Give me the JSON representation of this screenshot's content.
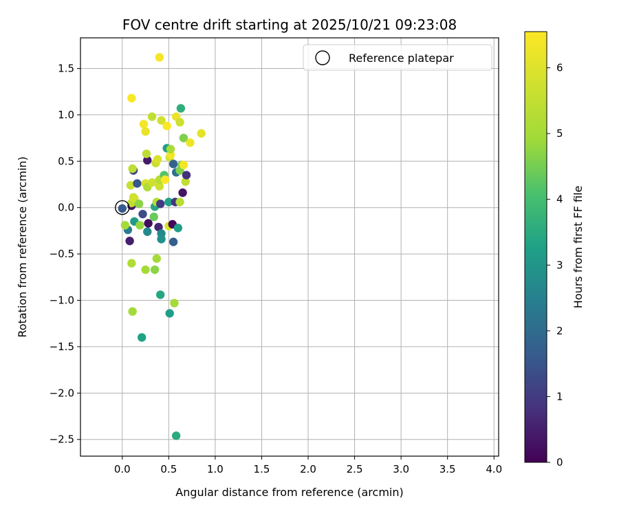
{
  "chart_data": {
    "type": "scatter",
    "title": "FOV centre drift starting at 2025/10/21 09:23:08",
    "xlabel": "Angular distance from reference (arcmin)",
    "ylabel": "Rotation from reference (arcmin)",
    "xlim": [
      -0.45,
      4.05
    ],
    "ylim": [
      -2.68,
      1.83
    ],
    "x_ticks": [
      0.0,
      0.5,
      1.0,
      1.5,
      2.0,
      2.5,
      3.0,
      3.5,
      4.0
    ],
    "x_tick_labels": [
      "0.0",
      "0.5",
      "1.0",
      "1.5",
      "2.0",
      "2.5",
      "3.0",
      "3.5",
      "4.0"
    ],
    "y_ticks": [
      1.5,
      1.0,
      0.5,
      0.0,
      -0.5,
      -1.0,
      -1.5,
      -2.0,
      -2.5
    ],
    "y_tick_labels": [
      "1.5",
      "1.0",
      "0.5",
      "0.0",
      "−0.5",
      "−1.0",
      "−1.5",
      "−2.0",
      "−2.5"
    ],
    "grid": true,
    "legend": {
      "position": "top-right",
      "entries": [
        "Reference platepar"
      ]
    },
    "reference_point": {
      "x": 0.0,
      "y": 0.0
    },
    "colorbar": {
      "label": "Hours from first FF file",
      "min": 0,
      "max": 6.55,
      "colormap": "viridis",
      "ticks": [
        0,
        1,
        2,
        3,
        4,
        5,
        6
      ],
      "tick_labels": [
        "0",
        "1",
        "2",
        "3",
        "4",
        "5",
        "6"
      ]
    },
    "points": [
      {
        "x": 0.0,
        "y": -0.01,
        "h": 1.6
      },
      {
        "x": 0.06,
        "y": -0.24,
        "h": 2.4
      },
      {
        "x": 0.08,
        "y": -0.36,
        "h": 0.5
      },
      {
        "x": 0.03,
        "y": -0.19,
        "h": 5.0
      },
      {
        "x": 0.1,
        "y": 0.02,
        "h": 0.3
      },
      {
        "x": 0.1,
        "y": 0.05,
        "h": 5.4
      },
      {
        "x": 0.09,
        "y": 0.24,
        "h": 5.6
      },
      {
        "x": 0.12,
        "y": 0.11,
        "h": 5.7
      },
      {
        "x": 0.12,
        "y": 0.4,
        "h": 1.2
      },
      {
        "x": 0.11,
        "y": 0.42,
        "h": 5.4
      },
      {
        "x": 0.13,
        "y": -0.15,
        "h": 3.1
      },
      {
        "x": 0.13,
        "y": 0.1,
        "h": 5.8
      },
      {
        "x": 0.16,
        "y": 0.26,
        "h": 1.5
      },
      {
        "x": 0.18,
        "y": 0.04,
        "h": 4.7
      },
      {
        "x": 0.19,
        "y": -0.19,
        "h": 4.8
      },
      {
        "x": 0.22,
        "y": -0.07,
        "h": 1.3
      },
      {
        "x": 0.25,
        "y": 0.26,
        "h": 5.9
      },
      {
        "x": 0.27,
        "y": 0.22,
        "h": 5.2
      },
      {
        "x": 0.27,
        "y": 0.51,
        "h": 0.4
      },
      {
        "x": 0.27,
        "y": -0.26,
        "h": 2.7
      },
      {
        "x": 0.28,
        "y": -0.17,
        "h": 0.2
      },
      {
        "x": 0.32,
        "y": 0.27,
        "h": 5.7
      },
      {
        "x": 0.34,
        "y": -0.1,
        "h": 4.4
      },
      {
        "x": 0.35,
        "y": 0.01,
        "h": 3.4
      },
      {
        "x": 0.36,
        "y": 0.48,
        "h": 5.6
      },
      {
        "x": 0.37,
        "y": 0.06,
        "h": 5.3
      },
      {
        "x": 0.38,
        "y": 0.52,
        "h": 5.9
      },
      {
        "x": 0.39,
        "y": -0.21,
        "h": 0.6
      },
      {
        "x": 0.4,
        "y": 0.23,
        "h": 5.7
      },
      {
        "x": 0.4,
        "y": 0.3,
        "h": 5.3
      },
      {
        "x": 0.41,
        "y": 0.04,
        "h": 1.0
      },
      {
        "x": 0.42,
        "y": -0.28,
        "h": 2.7
      },
      {
        "x": 0.42,
        "y": -0.34,
        "h": 2.9
      },
      {
        "x": 0.44,
        "y": 0.32,
        "h": 5.4
      },
      {
        "x": 0.45,
        "y": 0.35,
        "h": 4.2
      },
      {
        "x": 0.46,
        "y": 0.3,
        "h": 6.5
      },
      {
        "x": 0.48,
        "y": 0.64,
        "h": 3.2
      },
      {
        "x": 0.5,
        "y": 0.06,
        "h": 3.3
      },
      {
        "x": 0.5,
        "y": -0.2,
        "h": 5.9
      },
      {
        "x": 0.51,
        "y": 0.54,
        "h": 5.8
      },
      {
        "x": 0.52,
        "y": 0.57,
        "h": 6.4
      },
      {
        "x": 0.52,
        "y": 0.63,
        "h": 5.1
      },
      {
        "x": 0.54,
        "y": -0.18,
        "h": 0.1
      },
      {
        "x": 0.55,
        "y": 0.47,
        "h": 1.8
      },
      {
        "x": 0.55,
        "y": -0.37,
        "h": 1.7
      },
      {
        "x": 0.57,
        "y": 0.06,
        "h": 0.9
      },
      {
        "x": 0.58,
        "y": 0.38,
        "h": 2.1
      },
      {
        "x": 0.6,
        "y": -0.22,
        "h": 3.2
      },
      {
        "x": 0.62,
        "y": 0.06,
        "h": 5.3
      },
      {
        "x": 0.62,
        "y": 0.4,
        "h": 4.6
      },
      {
        "x": 0.64,
        "y": 0.46,
        "h": 4.5
      },
      {
        "x": 0.65,
        "y": 0.16,
        "h": 0.3
      },
      {
        "x": 0.66,
        "y": 0.75,
        "h": 4.6
      },
      {
        "x": 0.68,
        "y": 0.28,
        "h": 5.5
      },
      {
        "x": 0.69,
        "y": 0.35,
        "h": 0.8
      },
      {
        "x": 0.66,
        "y": 0.46,
        "h": 6.4
      },
      {
        "x": 0.1,
        "y": 1.18,
        "h": 6.5
      },
      {
        "x": 0.23,
        "y": 0.9,
        "h": 6.4
      },
      {
        "x": 0.25,
        "y": 0.82,
        "h": 6.2
      },
      {
        "x": 0.26,
        "y": 0.58,
        "h": 5.4
      },
      {
        "x": 0.32,
        "y": 0.98,
        "h": 5.5
      },
      {
        "x": 0.42,
        "y": 0.94,
        "h": 5.8
      },
      {
        "x": 0.48,
        "y": 0.88,
        "h": 6.5
      },
      {
        "x": 0.58,
        "y": 0.98,
        "h": 6.2
      },
      {
        "x": 0.62,
        "y": 0.92,
        "h": 5.7
      },
      {
        "x": 0.63,
        "y": 1.07,
        "h": 3.6
      },
      {
        "x": 0.73,
        "y": 0.7,
        "h": 6.3
      },
      {
        "x": 0.85,
        "y": 0.8,
        "h": 6.1
      },
      {
        "x": 0.4,
        "y": 1.62,
        "h": 6.4
      },
      {
        "x": 0.1,
        "y": -0.6,
        "h": 5.2
      },
      {
        "x": 0.25,
        "y": -0.67,
        "h": 5.0
      },
      {
        "x": 0.35,
        "y": -0.67,
        "h": 4.7
      },
      {
        "x": 0.37,
        "y": -0.55,
        "h": 5.0
      },
      {
        "x": 0.41,
        "y": -0.94,
        "h": 3.4
      },
      {
        "x": 0.11,
        "y": -1.12,
        "h": 5.0
      },
      {
        "x": 0.51,
        "y": -1.14,
        "h": 3.2
      },
      {
        "x": 0.56,
        "y": -1.03,
        "h": 5.0
      },
      {
        "x": 0.21,
        "y": -1.4,
        "h": 3.3
      },
      {
        "x": 0.58,
        "y": -2.46,
        "h": 3.5
      }
    ]
  }
}
